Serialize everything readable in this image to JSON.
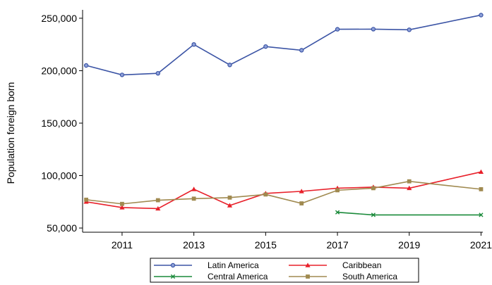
{
  "chart_data": {
    "type": "line",
    "title": "",
    "xlabel": "",
    "ylabel": "Population foreign born",
    "x": [
      2010,
      2011,
      2012,
      2013,
      2014,
      2015,
      2016,
      2017,
      2018,
      2019,
      2020,
      2021
    ],
    "xlim": [
      2009.9,
      2021.05
    ],
    "ylim": [
      46000,
      258000
    ],
    "xticks": [
      2011,
      2013,
      2015,
      2017,
      2019,
      2021
    ],
    "xtick_labels": [
      "2011",
      "2013",
      "2015",
      "2017",
      "2019",
      "2021"
    ],
    "yticks": [
      50000,
      100000,
      150000,
      200000,
      250000
    ],
    "ytick_labels": [
      "50,000",
      "100,000",
      "150,000",
      "200,000",
      "250,000"
    ],
    "grid": false,
    "legend_position": "bottom",
    "series": [
      {
        "name": "Latin America",
        "color": "#3b54a5",
        "marker": "circle",
        "values": [
          205000,
          196000,
          197500,
          225000,
          205500,
          223000,
          219500,
          239500,
          239600,
          239000,
          null,
          253000
        ]
      },
      {
        "name": "Caribbean",
        "color": "#e8202a",
        "marker": "triangle",
        "values": [
          75000,
          69500,
          68500,
          87000,
          71500,
          83000,
          85000,
          88000,
          89000,
          88000,
          null,
          103500
        ]
      },
      {
        "name": "Central America",
        "color": "#1a8a3a",
        "marker": "x",
        "values": [
          null,
          null,
          null,
          null,
          null,
          null,
          null,
          65000,
          62500,
          null,
          null,
          62500
        ]
      },
      {
        "name": "South America",
        "color": "#a08a50",
        "marker": "square",
        "values": [
          77000,
          73000,
          76500,
          78000,
          79000,
          82000,
          73500,
          86000,
          88000,
          94500,
          null,
          87000
        ]
      }
    ]
  }
}
